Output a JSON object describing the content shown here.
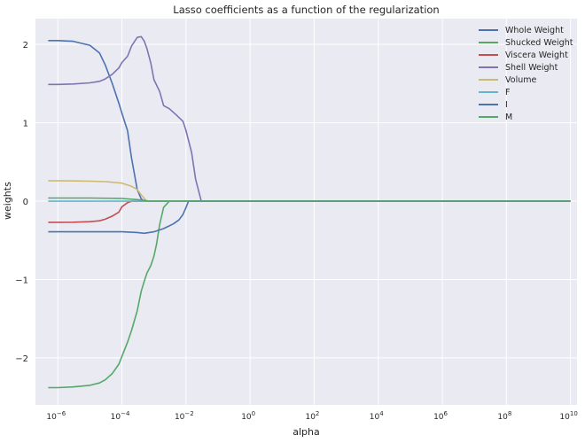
{
  "chart_data": {
    "type": "line",
    "title": "Lasso coefficients as a function of the regularization",
    "xlabel": "alpha",
    "ylabel": "weights",
    "xscale": "log",
    "xlim": [
      2e-07,
      16000000000.0
    ],
    "ylim": [
      -2.6,
      2.33
    ],
    "yticks": [
      2,
      1,
      0,
      -1,
      -2
    ],
    "ytick_labels": [
      "2",
      "1",
      "0",
      "−1",
      "−2"
    ],
    "xticks": [
      1e-06,
      0.0001,
      0.01,
      1,
      100,
      10000,
      1000000,
      100000000,
      10000000000
    ],
    "xtick_labels": [
      {
        "base": "10",
        "exp": "−6"
      },
      {
        "base": "10",
        "exp": "−4"
      },
      {
        "base": "10",
        "exp": "−2"
      },
      {
        "base": "10",
        "exp": "0"
      },
      {
        "base": "10",
        "exp": "2"
      },
      {
        "base": "10",
        "exp": "4"
      },
      {
        "base": "10",
        "exp": "6"
      },
      {
        "base": "10",
        "exp": "8"
      },
      {
        "base": "10",
        "exp": "10"
      }
    ],
    "grid": true,
    "legend_position": "top-right",
    "series": [
      {
        "name": "Whole Weight",
        "color": "#4c72b0",
        "x": [
          5e-07,
          1e-06,
          3e-06,
          1e-05,
          2e-05,
          3e-05,
          5e-05,
          8e-05,
          0.0001,
          0.00015,
          0.0002,
          0.0003,
          0.0004,
          0.0005,
          0.001,
          0.01,
          10000000000.0
        ],
        "y": [
          2.05,
          2.05,
          2.04,
          1.99,
          1.89,
          1.74,
          1.5,
          1.25,
          1.12,
          0.9,
          0.55,
          0.15,
          0.03,
          0,
          0,
          0,
          0
        ]
      },
      {
        "name": "Shucked Weight",
        "color": "#55a868",
        "x": [
          5e-07,
          1e-06,
          3e-06,
          1e-05,
          2e-05,
          3e-05,
          5e-05,
          8e-05,
          0.0001,
          0.00015,
          0.0002,
          0.0003,
          0.0004,
          0.0005,
          0.0006,
          0.0008,
          0.001,
          0.0012,
          0.0015,
          0.002,
          0.003,
          10000000000.0
        ],
        "y": [
          -2.38,
          -2.38,
          -2.37,
          -2.35,
          -2.32,
          -2.28,
          -2.2,
          -2.08,
          -1.98,
          -1.8,
          -1.65,
          -1.4,
          -1.15,
          -1.02,
          -0.92,
          -0.82,
          -0.7,
          -0.55,
          -0.3,
          -0.08,
          0,
          0
        ]
      },
      {
        "name": "Viscera Weight",
        "color": "#c44e52",
        "x": [
          5e-07,
          1e-06,
          3e-06,
          1e-05,
          2e-05,
          3e-05,
          5e-05,
          8e-05,
          0.0001,
          0.00015,
          0.0002,
          0.0003,
          0.0004,
          0.001,
          10000000000.0
        ],
        "y": [
          -0.27,
          -0.27,
          -0.268,
          -0.262,
          -0.25,
          -0.23,
          -0.19,
          -0.14,
          -0.07,
          -0.02,
          0,
          0,
          0,
          0,
          0
        ]
      },
      {
        "name": "Shell Weight",
        "color": "#8172b2",
        "x": [
          5e-07,
          1e-06,
          3e-06,
          1e-05,
          2e-05,
          3e-05,
          5e-05,
          8e-05,
          0.0001,
          0.00015,
          0.0002,
          0.0003,
          0.0004,
          0.0005,
          0.0006,
          0.0008,
          0.001,
          0.0015,
          0.002,
          0.003,
          0.005,
          0.008,
          0.01,
          0.015,
          0.02,
          0.03,
          10000000000.0
        ],
        "y": [
          1.49,
          1.49,
          1.495,
          1.51,
          1.53,
          1.56,
          1.62,
          1.7,
          1.77,
          1.85,
          1.98,
          2.09,
          2.1,
          2.04,
          1.95,
          1.76,
          1.55,
          1.4,
          1.22,
          1.18,
          1.1,
          1.02,
          0.9,
          0.62,
          0.28,
          0,
          0
        ]
      },
      {
        "name": "Volume",
        "color": "#ccb974",
        "x": [
          5e-07,
          1e-06,
          3e-06,
          1e-05,
          3e-05,
          0.0001,
          0.0002,
          0.0003,
          0.0004,
          0.0006,
          10000000000.0
        ],
        "y": [
          0.26,
          0.26,
          0.258,
          0.255,
          0.25,
          0.23,
          0.19,
          0.15,
          0.08,
          0,
          0
        ]
      },
      {
        "name": "F",
        "color": "#64b5cd",
        "x": [
          5e-07,
          10000000000.0
        ],
        "y": [
          0.0,
          0.0
        ]
      },
      {
        "name": "I",
        "color": "#4c72b0",
        "x": [
          5e-07,
          1e-06,
          1e-05,
          0.0001,
          0.0003,
          0.0005,
          0.001,
          0.002,
          0.004,
          0.006,
          0.008,
          0.01,
          0.012,
          10000000000.0
        ],
        "y": [
          -0.39,
          -0.39,
          -0.39,
          -0.39,
          -0.4,
          -0.41,
          -0.39,
          -0.35,
          -0.29,
          -0.24,
          -0.17,
          -0.08,
          0,
          0
        ]
      },
      {
        "name": "M",
        "color": "#55a868",
        "x": [
          5e-07,
          1e-06,
          1e-05,
          0.0001,
          0.0003,
          0.0005,
          0.0007,
          0.001,
          10000000000.0
        ],
        "y": [
          0.04,
          0.04,
          0.04,
          0.035,
          0.02,
          0.01,
          0,
          0,
          0
        ]
      }
    ]
  }
}
